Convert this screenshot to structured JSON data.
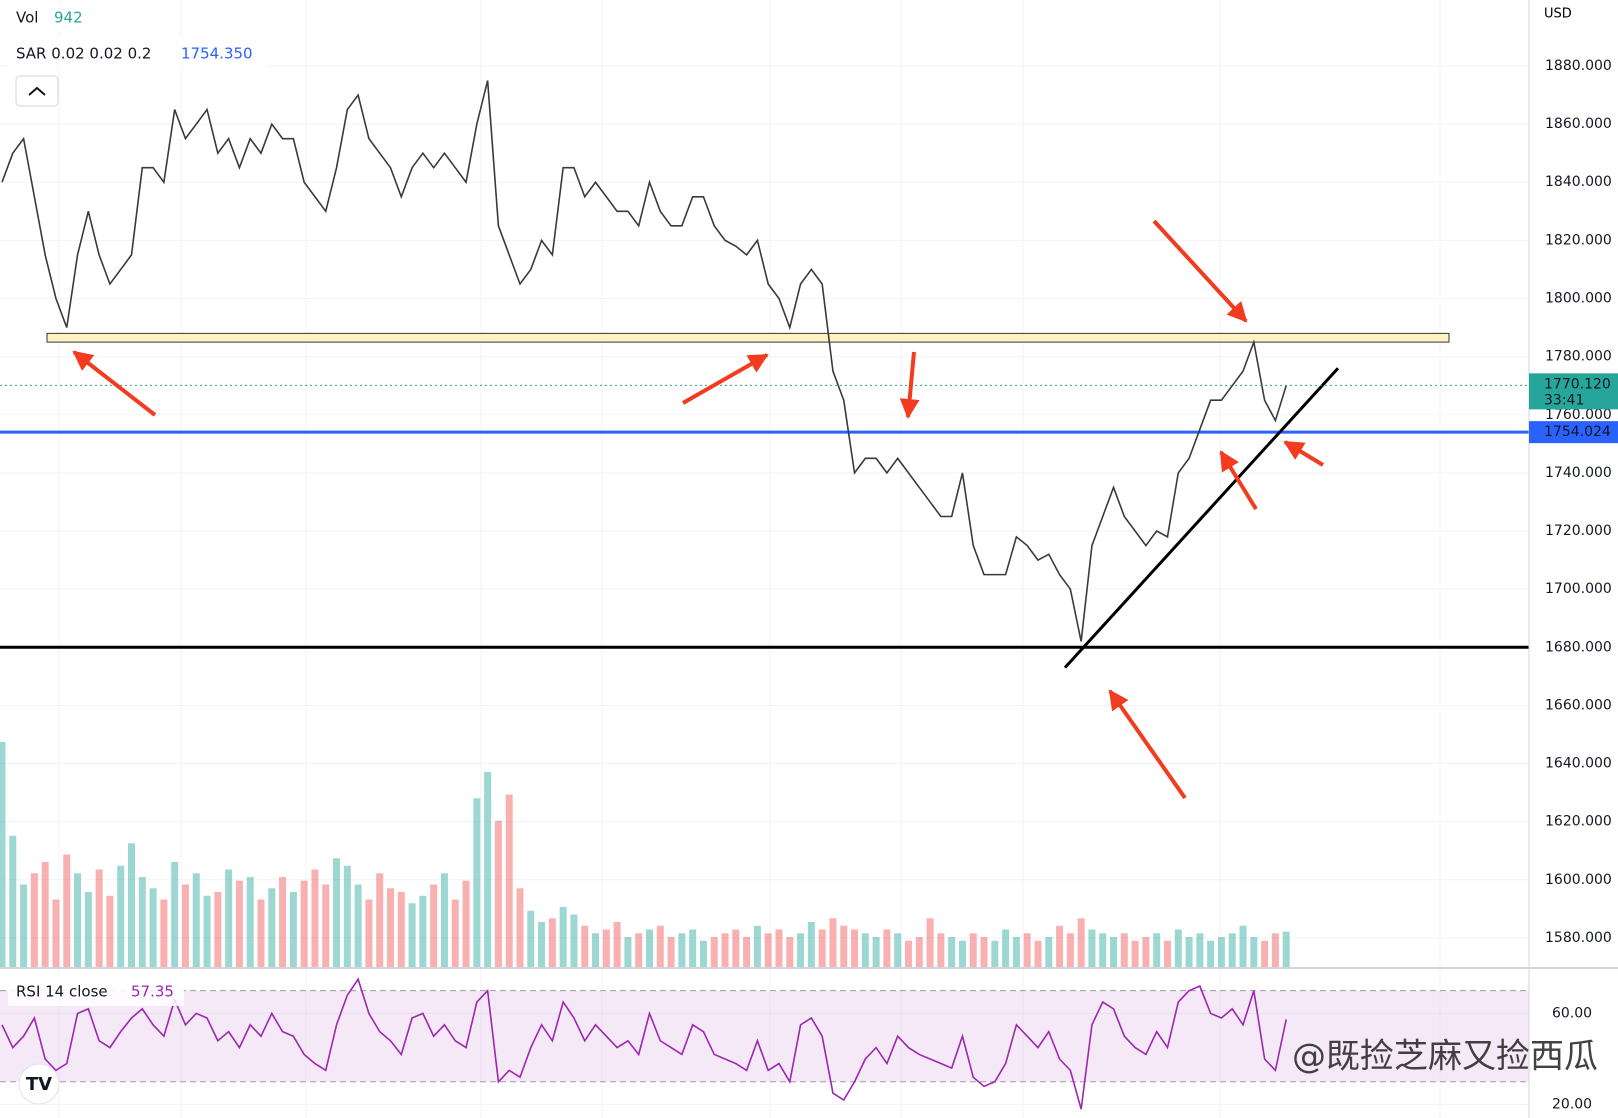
{
  "chart_data": {
    "type": "line",
    "currency": "USD",
    "legend": {
      "vol_label": "Vol",
      "vol_value": "942",
      "sar_label": "SAR 0.02 0.02 0.2",
      "sar_value": "1754.350"
    },
    "xlim": [
      0,
      141.5
    ],
    "ylim": [
      1570,
      1902.7
    ],
    "yticks": [
      {
        "value": 1580,
        "label": "1580.000"
      },
      {
        "value": 1600,
        "label": "1600.000"
      },
      {
        "value": 1620,
        "label": "1620.000"
      },
      {
        "value": 1640,
        "label": "1640.000"
      },
      {
        "value": 1660,
        "label": "1660.000"
      },
      {
        "value": 1680,
        "label": "1680.000"
      },
      {
        "value": 1700,
        "label": "1700.000"
      },
      {
        "value": 1720,
        "label": "1720.000"
      },
      {
        "value": 1740,
        "label": "1740.000"
      },
      {
        "value": 1760,
        "label": "1760.000"
      },
      {
        "value": 1780,
        "label": "1780.000"
      },
      {
        "value": 1800,
        "label": "1800.000"
      },
      {
        "value": 1820,
        "label": "1820.000"
      },
      {
        "value": 1840,
        "label": "1840.000"
      },
      {
        "value": 1860,
        "label": "1860.000"
      },
      {
        "value": 1880,
        "label": "1880.000"
      }
    ],
    "series": [
      {
        "name": "Price",
        "color": "#3a3a3a",
        "values": [
          1840,
          1850,
          1855,
          1835,
          1815,
          1800,
          1790,
          1815,
          1830,
          1815,
          1805,
          1810,
          1815,
          1845,
          1845,
          1840,
          1865,
          1855,
          1860,
          1865,
          1850,
          1855,
          1845,
          1855,
          1850,
          1860,
          1855,
          1855,
          1840,
          1835,
          1830,
          1845,
          1865,
          1870,
          1855,
          1850,
          1845,
          1835,
          1845,
          1850,
          1845,
          1850,
          1845,
          1840,
          1860,
          1875,
          1825,
          1815,
          1805,
          1810,
          1820,
          1815,
          1845,
          1845,
          1835,
          1840,
          1835,
          1830,
          1830,
          1825,
          1840,
          1830,
          1825,
          1825,
          1835,
          1835,
          1825,
          1820,
          1818,
          1815,
          1820,
          1805,
          1800,
          1790,
          1805,
          1810,
          1805,
          1775,
          1765,
          1740,
          1745,
          1745,
          1740,
          1745,
          1740,
          1735,
          1730,
          1725,
          1725,
          1740,
          1715,
          1705,
          1705,
          1705,
          1718,
          1715,
          1710,
          1712,
          1705,
          1700,
          1682,
          1715,
          1725,
          1735,
          1725,
          1720,
          1715,
          1720,
          1718,
          1740,
          1745,
          1755,
          1765,
          1765,
          1770,
          1775,
          1785,
          1765,
          1758,
          1770
        ]
      }
    ],
    "volume": {
      "ylim": [
        0,
        8000
      ],
      "up_color": "#26a69a",
      "down_color": "#ef5350",
      "values": [
        6000,
        3500,
        2200,
        2500,
        2800,
        1800,
        3000,
        2500,
        2000,
        2600,
        1900,
        2700,
        3300,
        2400,
        2100,
        1800,
        2800,
        2200,
        2500,
        1900,
        2000,
        2600,
        2300,
        2400,
        1800,
        2100,
        2400,
        2000,
        2300,
        2600,
        2200,
        2900,
        2700,
        2200,
        1800,
        2500,
        2100,
        2000,
        1700,
        1900,
        2200,
        2500,
        1800,
        2300,
        4500,
        5200,
        3900,
        4600,
        2100,
        1500,
        1200,
        1300,
        1600,
        1400,
        1100,
        900,
        1000,
        1200,
        800,
        900,
        1000,
        1100,
        800,
        900,
        1000,
        700,
        800,
        900,
        1000,
        800,
        1100,
        900,
        1000,
        800,
        900,
        1200,
        1000,
        1300,
        1100,
        1000,
        900,
        800,
        1000,
        900,
        700,
        800,
        1300,
        900,
        800,
        700,
        900,
        800,
        700,
        1000,
        800,
        900,
        700,
        800,
        1100,
        900,
        1300,
        1000,
        900,
        800,
        900,
        700,
        800,
        900,
        700,
        1000,
        800,
        900,
        700,
        800,
        900,
        1100,
        800,
        700,
        900,
        942
      ]
    },
    "levels": [
      {
        "value": 1754.024,
        "color": "#2962ff",
        "label": "1754.024"
      },
      {
        "value": 1680,
        "color": "#000000"
      }
    ],
    "zone": {
      "from": 1785,
      "to": 1788,
      "color": "#fff3c4"
    },
    "trendline": {
      "x": [
        98.5,
        123.8
      ],
      "y": [
        1673,
        1776
      ],
      "color": "#000000"
    },
    "last_price": {
      "value": 1770.12,
      "label": "1770.120",
      "countdown": "33:41",
      "color": "#26a69a"
    },
    "rsi": {
      "title": "RSI 14 close",
      "value_label": "57.35",
      "color": "#9c27b0",
      "ylim": [
        14.1,
        79.5
      ],
      "band": [
        30,
        70
      ],
      "yticks": [
        {
          "value": 20,
          "label": "20.00"
        },
        {
          "value": 60,
          "label": "60.00"
        }
      ],
      "values": [
        55,
        45,
        50,
        58,
        40,
        35,
        38,
        60,
        62,
        48,
        45,
        52,
        58,
        62,
        55,
        50,
        66,
        55,
        60,
        58,
        48,
        52,
        45,
        55,
        50,
        60,
        52,
        50,
        42,
        38,
        35,
        55,
        68,
        75,
        60,
        52,
        48,
        42,
        58,
        60,
        50,
        55,
        48,
        45,
        65,
        70,
        30,
        35,
        32,
        45,
        55,
        48,
        65,
        58,
        48,
        55,
        50,
        45,
        48,
        42,
        60,
        48,
        45,
        42,
        55,
        52,
        42,
        40,
        38,
        35,
        48,
        35,
        38,
        30,
        55,
        58,
        50,
        25,
        22,
        30,
        40,
        45,
        38,
        50,
        45,
        42,
        40,
        38,
        36,
        50,
        32,
        28,
        30,
        38,
        55,
        50,
        45,
        52,
        40,
        35,
        18,
        55,
        65,
        62,
        50,
        45,
        42,
        52,
        45,
        65,
        70,
        72,
        60,
        58,
        62,
        55,
        70,
        40,
        35,
        57.35
      ]
    }
  },
  "watermark": "@既捡芝麻又捡西瓜"
}
